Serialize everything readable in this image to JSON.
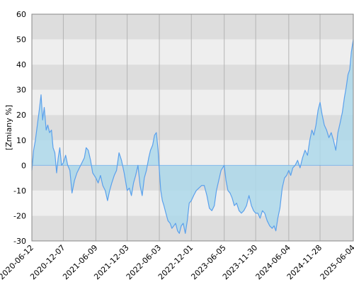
{
  "chart_data": {
    "type": "area",
    "title": "",
    "ylabel": "[Zmiany %]",
    "xlabel": "",
    "ylim": [
      -30,
      60
    ],
    "yticks": [
      -30,
      -20,
      -10,
      0,
      10,
      20,
      30,
      40,
      50,
      60
    ],
    "xlim": [
      "2020-06-12",
      "2025-06-04"
    ],
    "xticks": [
      "2020-06-12",
      "2020-12-07",
      "2021-06-09",
      "2021-12-03",
      "2022-06-03",
      "2022-12-01",
      "2023-06-05",
      "2023-11-30",
      "2024-06-04",
      "2024-11-28",
      "2025-06-04"
    ],
    "grid": true,
    "colors": {
      "line": "#5aa0ec",
      "fill": "#add8ea",
      "band_dark": "#dddddd",
      "band_light": "#eeeeee",
      "gridline": "#b4b4b4"
    },
    "series": [
      {
        "points": [
          [
            "2020-06-12",
            -2
          ],
          [
            "2020-06-22",
            6
          ],
          [
            "2020-07-02",
            10
          ],
          [
            "2020-07-13",
            16
          ],
          [
            "2020-07-24",
            22
          ],
          [
            "2020-08-03",
            28
          ],
          [
            "2020-08-12",
            18
          ],
          [
            "2020-08-21",
            23
          ],
          [
            "2020-09-01",
            14
          ],
          [
            "2020-09-10",
            16
          ],
          [
            "2020-09-20",
            13
          ],
          [
            "2020-10-01",
            14
          ],
          [
            "2020-10-10",
            7
          ],
          [
            "2020-10-20",
            5
          ],
          [
            "2020-10-30",
            -3
          ],
          [
            "2020-11-08",
            3
          ],
          [
            "2020-11-17",
            7
          ],
          [
            "2020-11-27",
            0
          ],
          [
            "2020-12-07",
            1
          ],
          [
            "2020-12-20",
            4
          ],
          [
            "2021-01-01",
            0
          ],
          [
            "2021-01-13",
            -2
          ],
          [
            "2021-01-25",
            -11
          ],
          [
            "2021-02-08",
            -6
          ],
          [
            "2021-02-22",
            -3
          ],
          [
            "2021-03-08",
            -1
          ],
          [
            "2021-03-22",
            1
          ],
          [
            "2021-04-05",
            3
          ],
          [
            "2021-04-15",
            7
          ],
          [
            "2021-04-27",
            6
          ],
          [
            "2021-05-10",
            2
          ],
          [
            "2021-05-22",
            -3
          ],
          [
            "2021-06-09",
            -5
          ],
          [
            "2021-06-22",
            -7
          ],
          [
            "2021-07-05",
            -4
          ],
          [
            "2021-07-18",
            -8
          ],
          [
            "2021-08-01",
            -10
          ],
          [
            "2021-08-14",
            -14
          ],
          [
            "2021-08-26",
            -10
          ],
          [
            "2021-09-07",
            -7
          ],
          [
            "2021-09-21",
            -4
          ],
          [
            "2021-10-04",
            -2
          ],
          [
            "2021-10-18",
            5
          ],
          [
            "2021-11-01",
            2
          ],
          [
            "2021-11-16",
            -3
          ],
          [
            "2021-12-03",
            -10
          ],
          [
            "2021-12-15",
            -9
          ],
          [
            "2021-12-27",
            -12
          ],
          [
            "2022-01-08",
            -7
          ],
          [
            "2022-01-20",
            -4
          ],
          [
            "2022-02-02",
            0
          ],
          [
            "2022-02-14",
            -8
          ],
          [
            "2022-02-26",
            -12
          ],
          [
            "2022-03-10",
            -5
          ],
          [
            "2022-03-22",
            -2
          ],
          [
            "2022-04-04",
            3
          ],
          [
            "2022-04-14",
            6
          ],
          [
            "2022-04-26",
            8
          ],
          [
            "2022-05-07",
            12
          ],
          [
            "2022-05-17",
            13
          ],
          [
            "2022-05-27",
            6
          ],
          [
            "2022-06-03",
            -2
          ],
          [
            "2022-06-11",
            -10
          ],
          [
            "2022-06-20",
            -14
          ],
          [
            "2022-06-29",
            -16
          ],
          [
            "2022-07-10",
            -19
          ],
          [
            "2022-07-22",
            -22
          ],
          [
            "2022-08-03",
            -23
          ],
          [
            "2022-08-13",
            -25
          ],
          [
            "2022-08-24",
            -24
          ],
          [
            "2022-09-03",
            -23
          ],
          [
            "2022-09-14",
            -26
          ],
          [
            "2022-09-24",
            -27
          ],
          [
            "2022-10-05",
            -24
          ],
          [
            "2022-10-16",
            -23
          ],
          [
            "2022-10-28",
            -27
          ],
          [
            "2022-11-08",
            -22
          ],
          [
            "2022-11-19",
            -15
          ],
          [
            "2022-12-01",
            -14
          ],
          [
            "2022-12-14",
            -12
          ],
          [
            "2022-12-29",
            -10
          ],
          [
            "2023-01-13",
            -9
          ],
          [
            "2023-01-28",
            -8
          ],
          [
            "2023-02-12",
            -8
          ],
          [
            "2023-02-27",
            -12
          ],
          [
            "2023-03-13",
            -17
          ],
          [
            "2023-03-27",
            -18
          ],
          [
            "2023-04-10",
            -16
          ],
          [
            "2023-04-22",
            -10
          ],
          [
            "2023-05-05",
            -6
          ],
          [
            "2023-05-18",
            -2
          ],
          [
            "2023-06-05",
            0
          ],
          [
            "2023-06-15",
            -6
          ],
          [
            "2023-06-26",
            -10
          ],
          [
            "2023-07-08",
            -11
          ],
          [
            "2023-07-20",
            -13
          ],
          [
            "2023-08-01",
            -16
          ],
          [
            "2023-08-14",
            -15
          ],
          [
            "2023-08-28",
            -18
          ],
          [
            "2023-09-10",
            -19
          ],
          [
            "2023-09-24",
            -18
          ],
          [
            "2023-10-09",
            -16
          ],
          [
            "2023-10-23",
            -12
          ],
          [
            "2023-11-06",
            -16
          ],
          [
            "2023-11-18",
            -18
          ],
          [
            "2023-11-30",
            -19
          ],
          [
            "2023-12-12",
            -19
          ],
          [
            "2023-12-25",
            -21
          ],
          [
            "2024-01-07",
            -18
          ],
          [
            "2024-01-20",
            -19
          ],
          [
            "2024-02-03",
            -22
          ],
          [
            "2024-02-17",
            -24
          ],
          [
            "2024-03-02",
            -25
          ],
          [
            "2024-03-13",
            -24
          ],
          [
            "2024-03-23",
            -26
          ],
          [
            "2024-04-03",
            -21
          ],
          [
            "2024-04-15",
            -17
          ],
          [
            "2024-04-28",
            -9
          ],
          [
            "2024-05-11",
            -5
          ],
          [
            "2024-05-23",
            -4
          ],
          [
            "2024-06-04",
            -2
          ],
          [
            "2024-06-15",
            -4
          ],
          [
            "2024-06-27",
            -1
          ],
          [
            "2024-07-10",
            0
          ],
          [
            "2024-07-24",
            2
          ],
          [
            "2024-08-07",
            -1
          ],
          [
            "2024-08-21",
            3
          ],
          [
            "2024-09-04",
            6
          ],
          [
            "2024-09-18",
            4
          ],
          [
            "2024-10-01",
            10
          ],
          [
            "2024-10-13",
            14
          ],
          [
            "2024-10-24",
            12
          ],
          [
            "2024-11-05",
            16
          ],
          [
            "2024-11-17",
            22
          ],
          [
            "2024-11-28",
            25
          ],
          [
            "2024-12-10",
            20
          ],
          [
            "2024-12-22",
            16
          ],
          [
            "2025-01-04",
            14
          ],
          [
            "2025-01-17",
            11
          ],
          [
            "2025-01-30",
            13
          ],
          [
            "2025-02-12",
            10
          ],
          [
            "2025-02-25",
            6
          ],
          [
            "2025-03-09",
            13
          ],
          [
            "2025-03-22",
            17
          ],
          [
            "2025-04-03",
            21
          ],
          [
            "2025-04-15",
            27
          ],
          [
            "2025-04-25",
            31
          ],
          [
            "2025-05-05",
            36
          ],
          [
            "2025-05-15",
            38
          ],
          [
            "2025-05-24",
            45
          ],
          [
            "2025-06-04",
            50
          ]
        ]
      }
    ]
  }
}
